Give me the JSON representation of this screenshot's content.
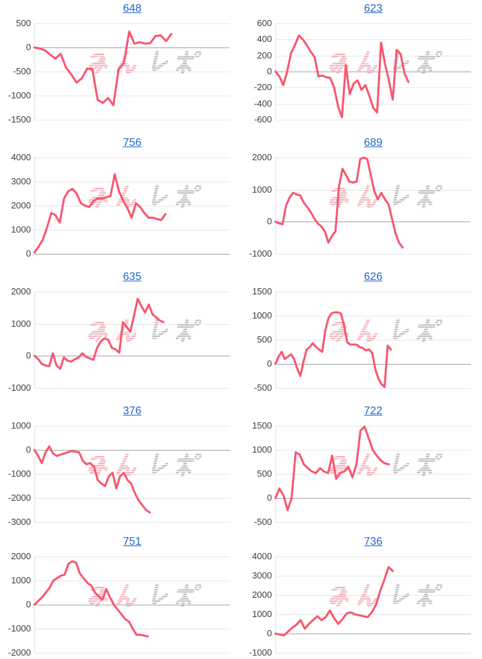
{
  "watermark": {
    "full_text": "みんレポ",
    "pink_text": "みん",
    "gray_text": "レポ"
  },
  "style": {
    "background": "#ffffff",
    "line_color": "#f8566e",
    "title_color": "#1b66c9",
    "grid_color": "#e7e7e7",
    "zero_line_color": "#a6a6a6",
    "axis_line_color": "#e0e0e0",
    "tick_label_color": "#3d3d3d",
    "watermark_pink": "#efa5b0",
    "watermark_gray": "#b5b5b5"
  },
  "chart_data": [
    {
      "type": "line",
      "title": "648",
      "xlabel": "",
      "ylabel": "",
      "ylim": [
        -1500,
        500
      ],
      "yticks": [
        500,
        0,
        -500,
        -1000,
        -1500
      ],
      "grid": true,
      "legend": false,
      "x_span_fraction": 0.7,
      "values": [
        0,
        -20,
        -60,
        -150,
        -230,
        -130,
        -420,
        -560,
        -730,
        -640,
        -440,
        -450,
        -1090,
        -1150,
        -1050,
        -1200,
        -450,
        -320,
        330,
        80,
        110,
        80,
        90,
        240,
        250,
        130,
        280
      ]
    },
    {
      "type": "line",
      "title": "623",
      "xlabel": "",
      "ylabel": "",
      "ylim": [
        -600,
        600
      ],
      "yticks": [
        600,
        400,
        200,
        0,
        -200,
        -400,
        -600
      ],
      "grid": true,
      "legend": false,
      "x_span_fraction": 0.68,
      "values": [
        0,
        -60,
        -170,
        0,
        230,
        330,
        450,
        400,
        330,
        250,
        180,
        -60,
        -50,
        -70,
        -80,
        -200,
        -430,
        -570,
        80,
        -280,
        -150,
        -110,
        -230,
        -170,
        -300,
        -450,
        -510,
        360,
        100,
        -110,
        -350,
        270,
        220,
        -20,
        -130
      ]
    },
    {
      "type": "line",
      "title": "756",
      "xlabel": "",
      "ylabel": "",
      "ylim": [
        0,
        4000
      ],
      "yticks": [
        4000,
        3000,
        2000,
        1000,
        0
      ],
      "grid": true,
      "legend": false,
      "x_span_fraction": 0.67,
      "values": [
        50,
        300,
        600,
        1100,
        1700,
        1600,
        1300,
        2300,
        2600,
        2700,
        2500,
        2100,
        2000,
        1950,
        2200,
        2300,
        2300,
        2350,
        2400,
        3300,
        2600,
        2200,
        1900,
        1500,
        2100,
        1950,
        1700,
        1500,
        1500,
        1450,
        1400,
        1650
      ]
    },
    {
      "type": "line",
      "title": "689",
      "xlabel": "",
      "ylabel": "",
      "ylim": [
        -1000,
        2000
      ],
      "yticks": [
        2000,
        1000,
        0,
        -1000
      ],
      "grid": true,
      "legend": false,
      "x_span_fraction": 0.65,
      "values": [
        0,
        -50,
        -80,
        500,
        750,
        900,
        850,
        820,
        600,
        450,
        300,
        100,
        -50,
        -150,
        -300,
        -650,
        -450,
        -300,
        1100,
        1650,
        1450,
        1250,
        1220,
        1250,
        1950,
        2000,
        1950,
        1450,
        950,
        700,
        900,
        700,
        550,
        100,
        -350,
        -650,
        -800
      ]
    },
    {
      "type": "line",
      "title": "635",
      "xlabel": "",
      "ylabel": "",
      "ylim": [
        -1000,
        2000
      ],
      "yticks": [
        2000,
        1000,
        0,
        -1000
      ],
      "grid": true,
      "legend": false,
      "x_span_fraction": 0.66,
      "values": [
        0,
        -100,
        -250,
        -300,
        -320,
        80,
        -300,
        -400,
        -50,
        -150,
        -180,
        -100,
        -50,
        80,
        -30,
        -80,
        -120,
        250,
        450,
        550,
        500,
        250,
        200,
        100,
        1050,
        900,
        750,
        1250,
        1780,
        1550,
        1350,
        1600,
        1300,
        1200,
        1100,
        1050
      ]
    },
    {
      "type": "line",
      "title": "626",
      "xlabel": "",
      "ylabel": "",
      "ylim": [
        -500,
        1500
      ],
      "yticks": [
        1500,
        1000,
        500,
        0,
        -500
      ],
      "grid": true,
      "legend": false,
      "x_span_fraction": 0.59,
      "values": [
        0,
        150,
        250,
        100,
        150,
        200,
        100,
        -100,
        -250,
        50,
        300,
        350,
        430,
        350,
        300,
        250,
        700,
        950,
        1050,
        1070,
        1070,
        1050,
        800,
        450,
        400,
        400,
        400,
        350,
        330,
        280,
        300,
        230,
        -100,
        -300,
        -420,
        -480,
        380,
        300
      ]
    },
    {
      "type": "line",
      "title": "376",
      "xlabel": "",
      "ylabel": "",
      "ylim": [
        -3000,
        1000
      ],
      "yticks": [
        1000,
        0,
        -1000,
        -2000,
        -3000
      ],
      "grid": true,
      "legend": false,
      "x_span_fraction": 0.59,
      "values": [
        0,
        -250,
        -550,
        -100,
        150,
        -150,
        -250,
        -200,
        -150,
        -100,
        -50,
        -80,
        -100,
        -450,
        -600,
        -550,
        -700,
        -1250,
        -1400,
        -1500,
        -1100,
        -950,
        -1600,
        -1100,
        -950,
        -1250,
        -1400,
        -1800,
        -2100,
        -2300,
        -2500,
        -2600
      ]
    },
    {
      "type": "line",
      "title": "722",
      "xlabel": "",
      "ylabel": "",
      "ylim": [
        -500,
        1500
      ],
      "yticks": [
        1500,
        1000,
        500,
        0,
        -500
      ],
      "grid": true,
      "legend": false,
      "x_span_fraction": 0.58,
      "values": [
        0,
        200,
        50,
        -250,
        0,
        950,
        900,
        700,
        620,
        550,
        520,
        620,
        550,
        520,
        880,
        400,
        520,
        550,
        650,
        430,
        700,
        1400,
        1480,
        1250,
        1000,
        880,
        780,
        720,
        700
      ]
    },
    {
      "type": "line",
      "title": "751",
      "xlabel": "",
      "ylabel": "",
      "ylim": [
        -2000,
        2000
      ],
      "yticks": [
        2000,
        1000,
        0,
        -1000,
        -2000
      ],
      "grid": true,
      "legend": false,
      "x_span_fraction": 0.58,
      "values": [
        0,
        150,
        300,
        500,
        700,
        1000,
        1100,
        1200,
        1250,
        1700,
        1800,
        1750,
        1300,
        1100,
        900,
        800,
        500,
        350,
        200,
        650,
        300,
        0,
        -200,
        -400,
        -600,
        -700,
        -1000,
        -1250,
        -1250,
        -1280,
        -1320
      ]
    },
    {
      "type": "line",
      "title": "736",
      "xlabel": "",
      "ylabel": "",
      "ylim": [
        -1000,
        4000
      ],
      "yticks": [
        4000,
        3000,
        2000,
        1000,
        0,
        -1000
      ],
      "grid": true,
      "legend": false,
      "x_span_fraction": 0.6,
      "values": [
        0,
        -50,
        -100,
        100,
        300,
        450,
        700,
        250,
        500,
        700,
        900,
        700,
        850,
        1200,
        800,
        500,
        750,
        1050,
        1100,
        1000,
        950,
        900,
        850,
        1100,
        1500,
        2200,
        2800,
        3450,
        3250
      ]
    }
  ]
}
